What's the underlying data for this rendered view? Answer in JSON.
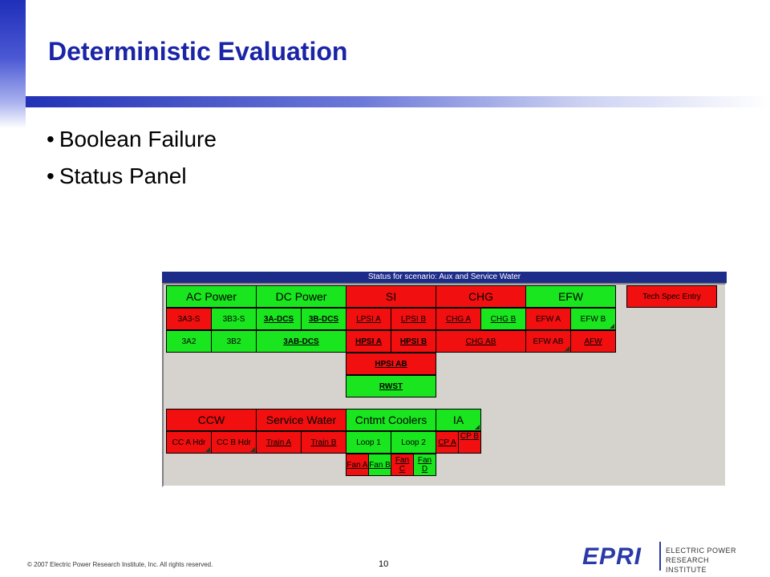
{
  "slide": {
    "title": "Deterministic Evaluation",
    "bullets": [
      "Boolean Failure",
      "Status Panel"
    ],
    "footer": "© 2007 Electric Power Research Institute, Inc. All rights reserved.",
    "page_number": "10",
    "logo": {
      "wordmark": "EPRI",
      "subtitle": "ELECTRIC POWER\nRESEARCH INSTITUTE"
    }
  },
  "colors": {
    "failed": "#f20f0f",
    "ok": "#19e61e",
    "title_blue": "#1a24a6",
    "panel_header": "#1c2c88"
  },
  "panel": {
    "title": "Status for scenario: Aux and Service Water",
    "cells": {
      "ac_power": "AC Power",
      "dc_power": "DC Power",
      "si": "SI",
      "chg": "CHG",
      "efw": "EFW",
      "tech_spec": "Tech Spec Entry",
      "3a3s": "3A3-S",
      "3b3s": "3B3-S",
      "3adcs": "3A-DCS",
      "3bdcs": "3B-DCS",
      "lpsia": "LPSI A",
      "lpsib": "LPSI B",
      "chga": "CHG A",
      "chgb": "CHG B",
      "efwa": "EFW A",
      "efwb": "EFW B",
      "3a2": "3A2",
      "3b2": "3B2",
      "3abdcs": "3AB-DCS",
      "hpsia": "HPSI A",
      "hpsib": "HPSI B",
      "chgab": "CHG AB",
      "efwab": "EFW AB",
      "afw": "AFW",
      "hpsiab": "HPSI AB",
      "rwst": "RWST",
      "ccw": "CCW",
      "service_water": "Service Water",
      "cntmt_coolers": "Cntmt Coolers",
      "ia": "IA",
      "cc_a_hdr": "CC A Hdr",
      "cc_b_hdr": "CC B Hdr",
      "train_a": "Train A",
      "train_b": "Train B",
      "loop1": "Loop 1",
      "loop2": "Loop 2",
      "cp_a": "CP A",
      "cp_b": "CP B",
      "fan_a": "Fan A",
      "fan_b": "Fan B",
      "fan_c": "Fan C",
      "fan_d": "Fan D"
    }
  }
}
